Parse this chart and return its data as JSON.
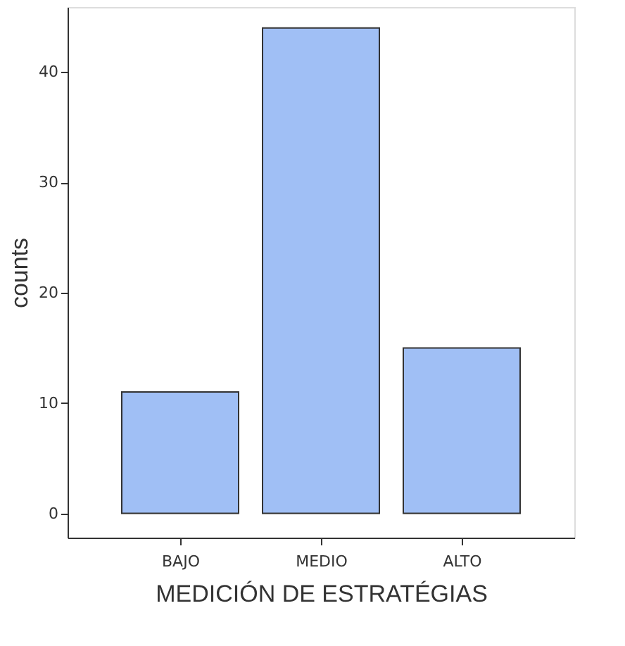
{
  "chart_data": {
    "type": "bar",
    "xlabel": "MEDICIÓN DE ESTRATÉGIAS",
    "ylabel": "counts",
    "categories": [
      "BAJO",
      "MEDIO",
      "ALTO"
    ],
    "values": [
      11,
      44,
      15
    ],
    "color": "#a0bff5",
    "ylim": [
      -2.2,
      45.9
    ],
    "yticks": [
      0,
      10,
      20,
      30,
      40
    ],
    "grid": false
  }
}
